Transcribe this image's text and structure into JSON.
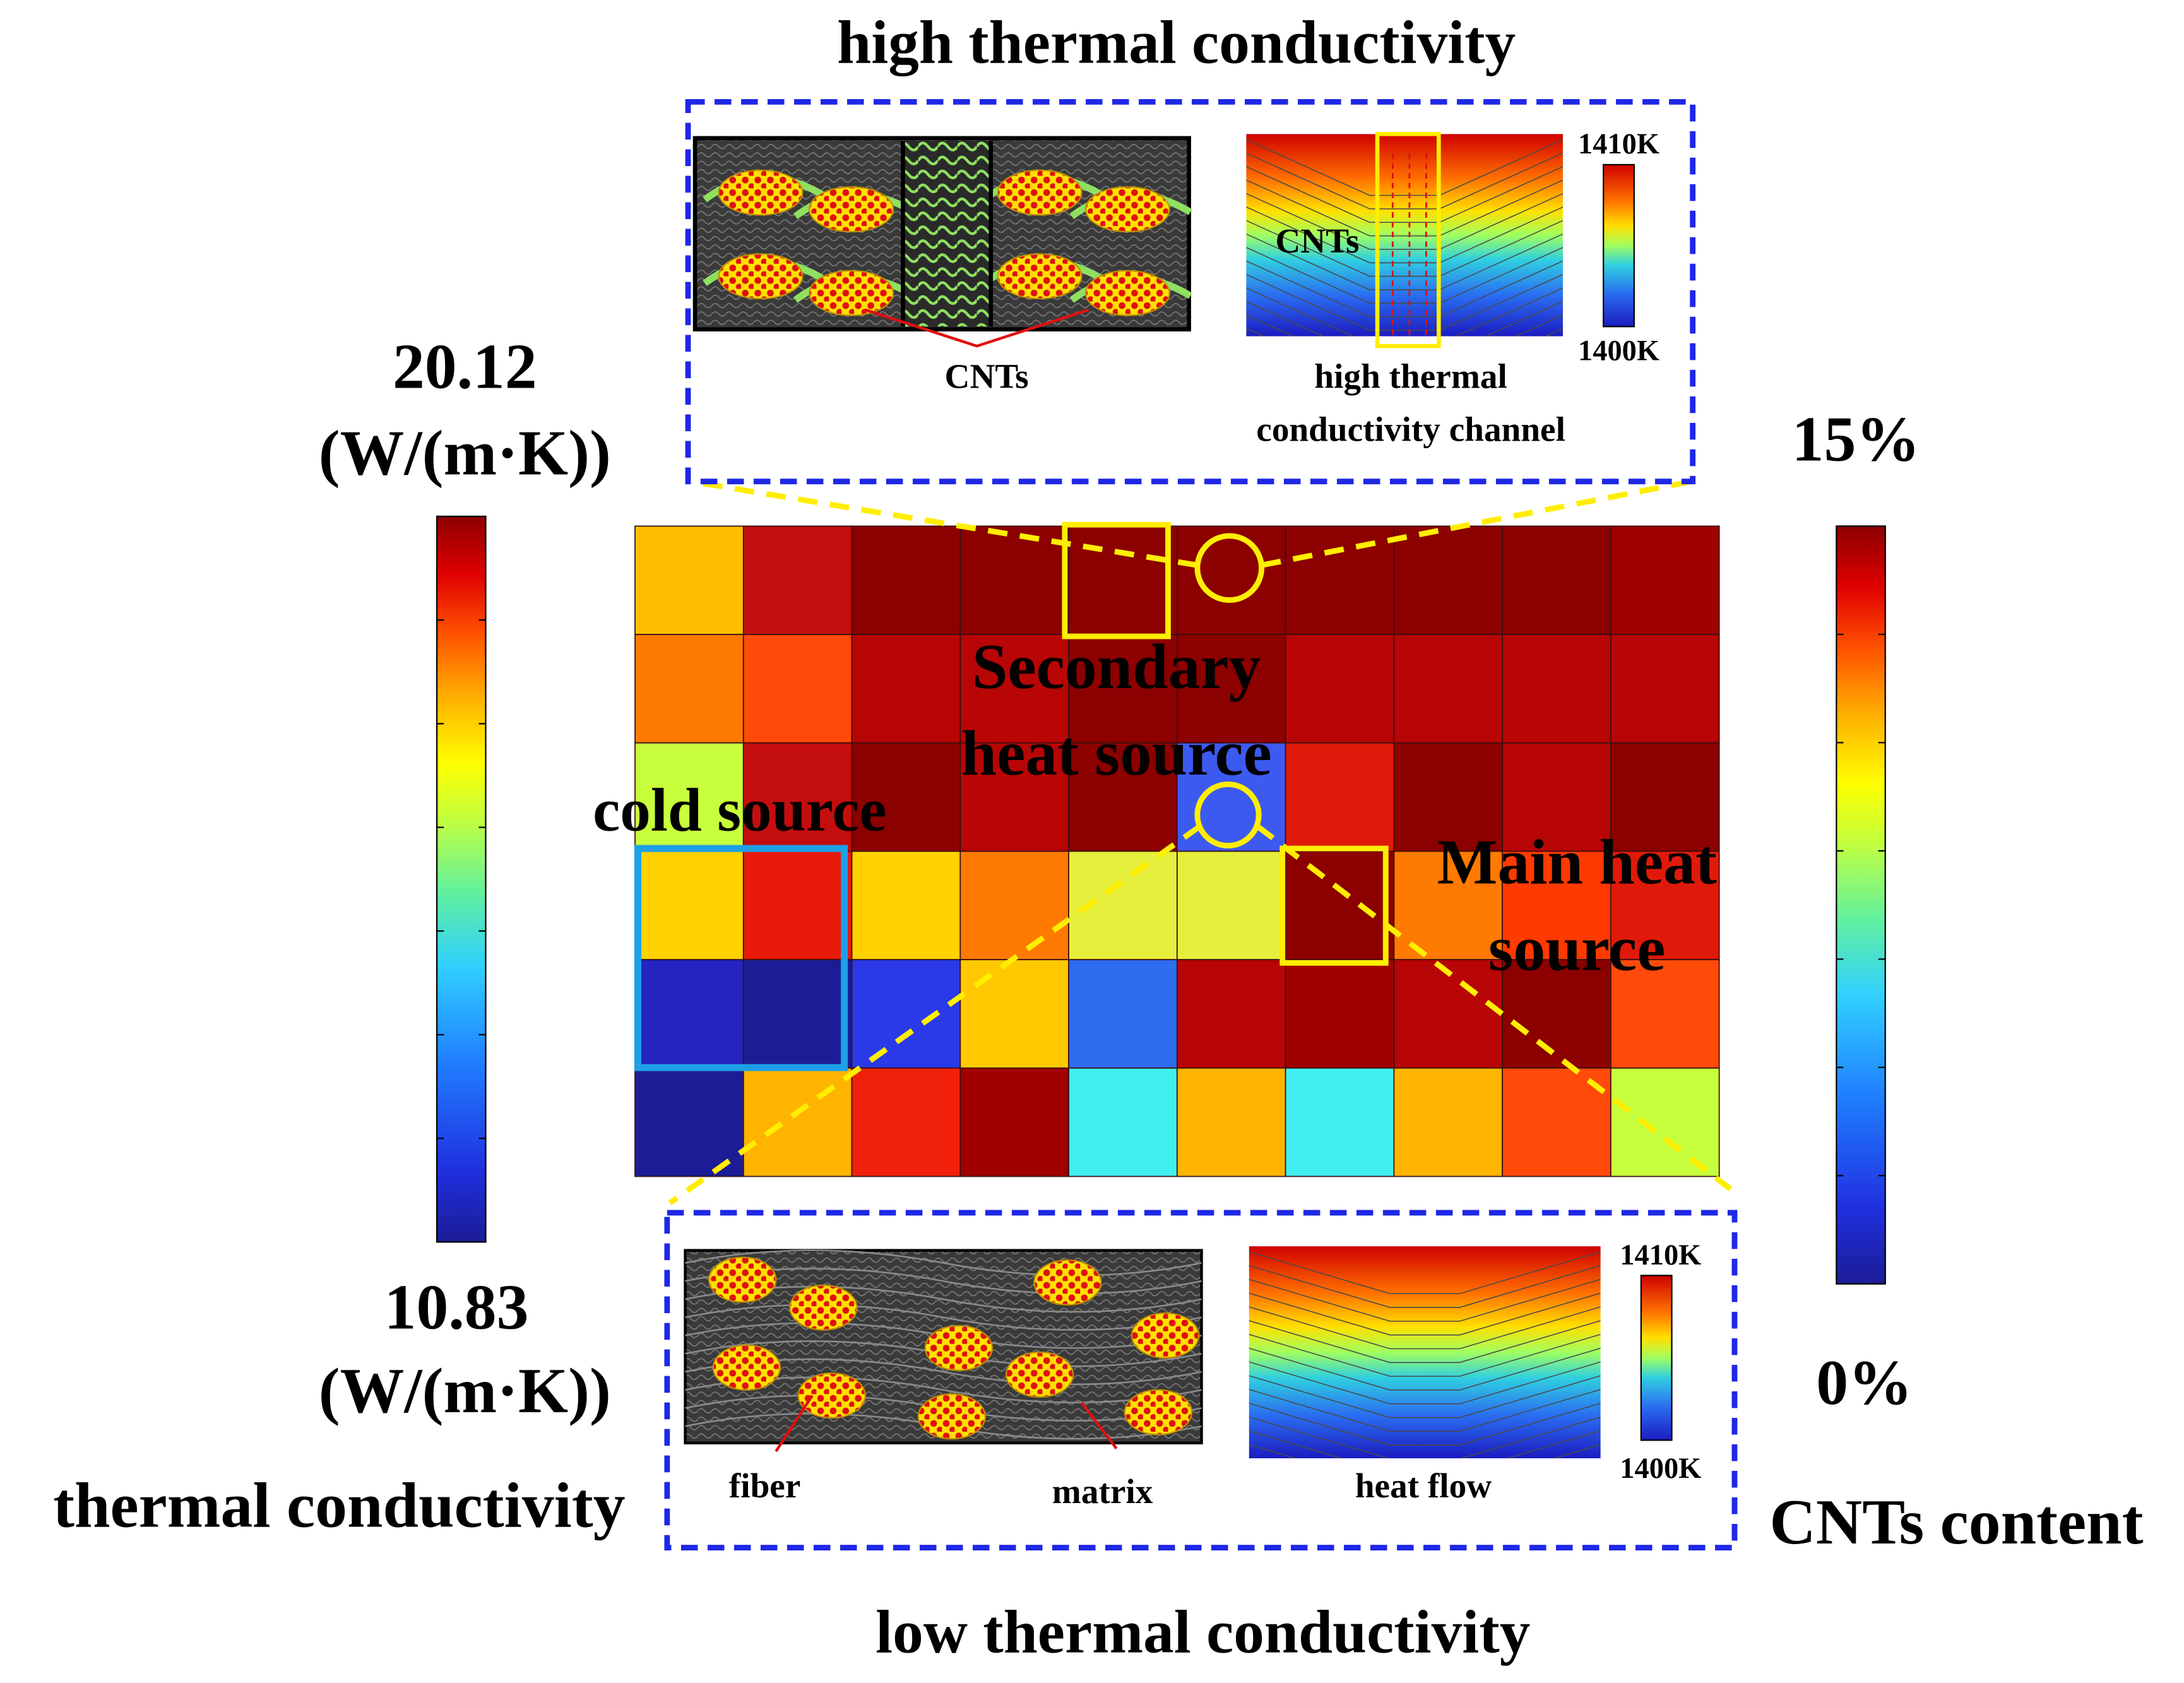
{
  "figure": {
    "top_title": "high thermal conductivity",
    "bottom_title": "low thermal conductivity"
  },
  "left_colorbar": {
    "max_value": "20.12",
    "max_unit": "(W/(m·K))",
    "min_value": "10.83",
    "min_unit": "(W/(m·K))",
    "label": "thermal conductivity"
  },
  "right_colorbar": {
    "max_label": "15%",
    "min_label": "0%",
    "label": "CNTs content"
  },
  "main_grid": {
    "rows": 6,
    "cols": 10,
    "cell_colors": [
      [
        "#ffbf00",
        "#c40e0e",
        "#8c0000",
        "#8c0000",
        "#8c0000",
        "#8c0000",
        "#8c0000",
        "#8c0000",
        "#8c0000",
        "#a00000"
      ],
      [
        "#ff7a00",
        "#ff4a0a",
        "#b80505",
        "#b80505",
        "#8c0000",
        "#8c0000",
        "#b80505",
        "#b80505",
        "#b80505",
        "#b80505"
      ],
      [
        "#c8ff3c",
        "#c40e0e",
        "#8c0000",
        "#b80505",
        "#8c0000",
        "#3d5af0",
        "#e01a0a",
        "#8c0000",
        "#b80505",
        "#8c0000"
      ],
      [
        "#ffd200",
        "#e81a0a",
        "#ffd200",
        "#ff7a00",
        "#e6f03c",
        "#e6f03c",
        "#8c0000",
        "#ff7a00",
        "#ff3a00",
        "#e01a0a"
      ],
      [
        "#2424c0",
        "#1c1c96",
        "#2a3ae8",
        "#ffc800",
        "#2e6cf0",
        "#b80505",
        "#a00000",
        "#b80505",
        "#8c0000",
        "#ff4a0a"
      ],
      [
        "#1c1c96",
        "#ffb400",
        "#f0200a",
        "#a00000",
        "#40f0f0",
        "#ffb400",
        "#40f0f0",
        "#ffb400",
        "#ff4a0a",
        "#c8ff3c"
      ]
    ],
    "labels": {
      "secondary_heat_source": [
        "Secondary",
        "heat source"
      ],
      "cold_source": "cold source",
      "main_heat_source": [
        "Main heat",
        "source"
      ]
    },
    "highlight_color": "#ffee00",
    "cold_box_color": "#1ea0e6"
  },
  "top_inset": {
    "border_color": "#1e28e6",
    "micro_label": "CNTs",
    "field_label": "CNTs",
    "scale_max": "1410K",
    "scale_min": "1400K",
    "caption": [
      "high thermal",
      "conductivity channel"
    ]
  },
  "bottom_inset": {
    "border_color": "#1e28e6",
    "fiber_label": "fiber",
    "matrix_label": "matrix",
    "scale_max": "1410K",
    "scale_min": "1400K",
    "caption": "heat flow"
  },
  "colors": {
    "jet": [
      "#1c1c96",
      "#2030e0",
      "#2080ff",
      "#30d0ff",
      "#40f0c0",
      "#a0ff60",
      "#ffff00",
      "#ffb000",
      "#ff5000",
      "#e00000",
      "#8c0000"
    ]
  }
}
